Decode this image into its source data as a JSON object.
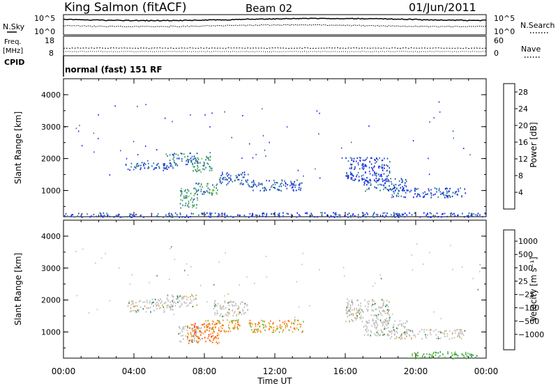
{
  "header": {
    "station": "King Salmon (fitACF)",
    "beam": "Beam 02",
    "date": "01/Jun/2011",
    "program": "normal (fast) 151 RF"
  },
  "top_panels": {
    "nsky_label": "N.Sky",
    "nsearch_label": "N.Search",
    "noise_ticks_left": [
      "10^5",
      "10^0"
    ],
    "noise_ticks_right": [
      "10^5",
      "10^0"
    ],
    "freq_label_line1": "Freq.",
    "freq_label_line2": "[MHz]",
    "freq_ticks": [
      "18",
      "8"
    ],
    "nave_label": "Nave",
    "nave_ticks": [
      "60",
      "0"
    ],
    "cpid_label": "CPID"
  },
  "chart_data": [
    {
      "type": "heatmap",
      "title": "",
      "panel": "power",
      "xlabel": "",
      "ylabel": "Slant Range [km]",
      "x_ticks": [
        "00:00",
        "04:00",
        "08:00",
        "12:00",
        "16:00",
        "20:00",
        "00:00"
      ],
      "xlim_hours": [
        0,
        24
      ],
      "y_ticks": [
        1000,
        2000,
        3000,
        4000
      ],
      "ylim": [
        180,
        4500
      ],
      "colorbar": {
        "label": "Power [dB]",
        "ticks": [
          4,
          8,
          12,
          16,
          20,
          24,
          28
        ],
        "range": [
          0,
          30
        ],
        "colors": [
          "#1a1aff",
          "#1f4fc9",
          "#2f7d8e",
          "#3f9e5e",
          "#63c23a",
          "#a8d62f",
          "#f2cf1e",
          "#ff9a14",
          "#ff5a10",
          "#e00000"
        ]
      },
      "echo_regions": [
        {
          "t0": 3.5,
          "t1": 6.2,
          "r0": 1650,
          "r1": 1900,
          "level": 0.25
        },
        {
          "t0": 5.8,
          "t1": 7.6,
          "r0": 1800,
          "r1": 2200,
          "level": 0.35
        },
        {
          "t0": 6.6,
          "t1": 7.6,
          "r0": 450,
          "r1": 1100,
          "level": 0.55
        },
        {
          "t0": 7.2,
          "t1": 8.4,
          "r0": 1600,
          "r1": 2100,
          "level": 0.5
        },
        {
          "t0": 7.5,
          "t1": 8.8,
          "r0": 850,
          "r1": 1250,
          "level": 0.5
        },
        {
          "t0": 8.8,
          "t1": 10.5,
          "r0": 1200,
          "r1": 1600,
          "level": 0.3
        },
        {
          "t0": 10.5,
          "t1": 13.6,
          "r0": 1000,
          "r1": 1350,
          "level": 0.3
        },
        {
          "t0": 16.0,
          "t1": 18.5,
          "r0": 1300,
          "r1": 2050,
          "level": 0.2
        },
        {
          "t0": 17.0,
          "t1": 19.5,
          "r0": 1000,
          "r1": 1400,
          "level": 0.3
        },
        {
          "t0": 18.5,
          "t1": 22.8,
          "r0": 800,
          "r1": 1100,
          "level": 0.25
        },
        {
          "t0": 0.0,
          "t1": 24.0,
          "r0": 180,
          "r1": 330,
          "level": 0.2
        }
      ]
    },
    {
      "type": "heatmap",
      "title": "",
      "panel": "velocity",
      "xlabel": "Time UT",
      "ylabel": "Slant Range [km]",
      "x_ticks": [
        "00:00",
        "04:00",
        "08:00",
        "12:00",
        "16:00",
        "20:00",
        "00:00"
      ],
      "xlim_hours": [
        0,
        24
      ],
      "y_ticks": [
        1000,
        2000,
        3000,
        4000
      ],
      "ylim": [
        180,
        4500
      ],
      "colorbar": {
        "label": "Velocity [m s⁻¹]",
        "ticks": [
          1000,
          500,
          100,
          25,
          -25,
          -100,
          -500,
          -1000
        ],
        "tick_labels": [
          "1000",
          "500",
          "100",
          "25",
          "−25",
          "−100",
          "−500",
          "−1000"
        ],
        "colors": [
          "#2030c0",
          "#2f5da8",
          "#2f8a52",
          "#58c23a",
          "#bfbfbf",
          "#bfbfbf",
          "#f2a020",
          "#ff7010",
          "#ff3010",
          "#e00000"
        ]
      },
      "echo_regions": [
        {
          "t0": 3.5,
          "t1": 6.2,
          "r0": 1650,
          "r1": 2050,
          "vel": 0
        },
        {
          "t0": 5.8,
          "t1": 7.6,
          "r0": 1800,
          "r1": 2200,
          "vel": 0
        },
        {
          "t0": 6.5,
          "t1": 7.8,
          "r0": 700,
          "r1": 1200,
          "vel": 0
        },
        {
          "t0": 7.0,
          "t1": 8.8,
          "r0": 650,
          "r1": 1300,
          "vel": -450
        },
        {
          "t0": 8.5,
          "t1": 10.5,
          "r0": 1500,
          "r1": 2000,
          "vel": 0
        },
        {
          "t0": 8.0,
          "t1": 10.0,
          "r0": 1000,
          "r1": 1400,
          "vel": -200
        },
        {
          "t0": 10.5,
          "t1": 13.6,
          "r0": 1000,
          "r1": 1400,
          "vel": -150
        },
        {
          "t0": 16.0,
          "t1": 18.5,
          "r0": 1300,
          "r1": 2050,
          "vel": 0
        },
        {
          "t0": 17.0,
          "t1": 19.5,
          "r0": 900,
          "r1": 1400,
          "vel": 0
        },
        {
          "t0": 18.5,
          "t1": 22.8,
          "r0": 800,
          "r1": 1100,
          "vel": 0
        },
        {
          "t0": 19.5,
          "t1": 23.5,
          "r0": 180,
          "r1": 400,
          "vel": 150
        }
      ]
    }
  ]
}
